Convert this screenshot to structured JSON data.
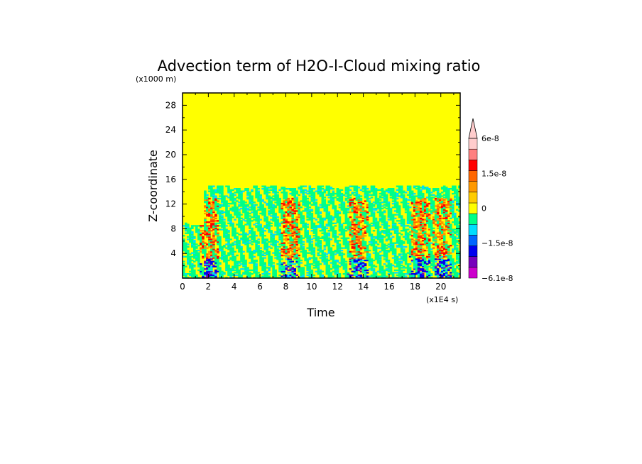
{
  "chart_data": {
    "type": "heatmap",
    "title": "Advection term of H2O-l-Cloud mixing ratio",
    "ylabel": "Z-coordinate",
    "xlabel": "Time",
    "y_unit": "(x1000 m)",
    "x_unit": "(x1E4 s)",
    "xlim": [
      0,
      21.5
    ],
    "ylim": [
      0,
      30
    ],
    "x_ticks": [
      "0",
      "2",
      "4",
      "6",
      "8",
      "10",
      "12",
      "14",
      "16",
      "18",
      "20"
    ],
    "y_ticks": [
      "4",
      "8",
      "12",
      "16",
      "20",
      "24",
      "28"
    ],
    "background_value": 0,
    "active_layer_top": 15,
    "colorbar": {
      "labels": [
        {
          "text": "6e-8",
          "value": 6e-08
        },
        {
          "text": "1.5e-8",
          "value": 1.5e-08
        },
        {
          "text": "0",
          "value": 0
        },
        {
          "text": "−1.5e-8",
          "value": -1.5e-08
        },
        {
          "text": "−6.1e-8",
          "value": -6.1e-08
        }
      ],
      "colors_bottom_to_top": [
        "#cc00cc",
        "#7700bb",
        "#0000ee",
        "#0066ff",
        "#00ddff",
        "#00ff88",
        "#ffff00",
        "#ffcc00",
        "#ff9900",
        "#ff6600",
        "#ff0000",
        "#ff8080",
        "#ffcccc"
      ],
      "max_extension": "triangle"
    },
    "convective_bursts_x": [
      2,
      8.3,
      13.5,
      18.3,
      20
    ]
  }
}
